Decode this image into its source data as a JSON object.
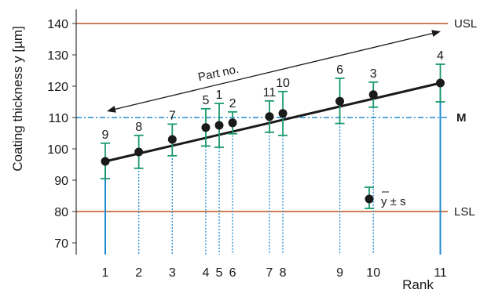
{
  "chart_data": {
    "type": "scatter",
    "ylabel": "Coating thickness y [µm]",
    "xlabel": "Rank",
    "ylim": [
      67,
      146
    ],
    "yticks": [
      70,
      80,
      90,
      100,
      110,
      120,
      130,
      140
    ],
    "xlim": [
      0,
      12
    ],
    "xticks": [
      "1",
      "2",
      "3",
      "4",
      "5",
      "6",
      "7",
      "8",
      "9",
      "10",
      "11"
    ],
    "grid": false,
    "points": [
      {
        "rank": 1,
        "rank_label": "1",
        "part": "9",
        "mean": 96,
        "lower": 90.5,
        "upper": 101.8
      },
      {
        "rank": 2,
        "rank_label": "2",
        "part": "8",
        "mean": 99,
        "lower": 93.8,
        "upper": 104.3
      },
      {
        "rank": 3,
        "rank_label": "3",
        "part": "7",
        "mean": 103,
        "lower": 97.8,
        "upper": 107.9
      },
      {
        "rank": 4,
        "rank_label": "4",
        "part": "5",
        "mean": 106.8,
        "lower": 100.9,
        "upper": 112.8
      },
      {
        "rank": 4.4,
        "rank_label": "5",
        "part": "1",
        "mean": 107.5,
        "lower": 100.5,
        "upper": 114.5
      },
      {
        "rank": 4.8,
        "rank_label": "6",
        "part": "2",
        "mean": 108.3,
        "lower": 104.8,
        "upper": 111.8
      },
      {
        "rank": 5.9,
        "rank_label": "7",
        "part": "11",
        "mean": 110.3,
        "lower": 105.3,
        "upper": 115.3
      },
      {
        "rank": 6.3,
        "rank_label": "8",
        "part": "10",
        "mean": 111.3,
        "lower": 104.3,
        "upper": 118.3
      },
      {
        "rank": 8,
        "rank_label": "9",
        "part": "6",
        "mean": 115.2,
        "lower": 108.1,
        "upper": 122.5
      },
      {
        "rank": 9,
        "rank_label": "10",
        "part": "3",
        "mean": 117.3,
        "lower": 113.3,
        "upper": 121.3
      },
      {
        "rank": 11,
        "rank_label": "11",
        "part": "4",
        "mean": 121,
        "lower": 115,
        "upper": 127
      }
    ],
    "reference_lines": [
      {
        "label": "USL",
        "value": 140,
        "style": "solid",
        "color": "#c0501e"
      },
      {
        "label": "M",
        "value": 110,
        "style": "dashdot",
        "color": "#1f8bd1"
      },
      {
        "label": "LSL",
        "value": 80,
        "style": "solid",
        "color": "#c0501e"
      }
    ],
    "trend_line": {
      "from_rank": 1,
      "from_value": 96,
      "to_rank": 11,
      "to_value": 121
    },
    "annotation": {
      "text": "Part no."
    },
    "legend": {
      "label": "y ± s",
      "position": "lower-right"
    },
    "colors": {
      "errorbar": "#1a9a6a",
      "drop_line": "#1f8bd1",
      "spec_line": "#c0501e",
      "point": "#1a1a1a"
    }
  }
}
